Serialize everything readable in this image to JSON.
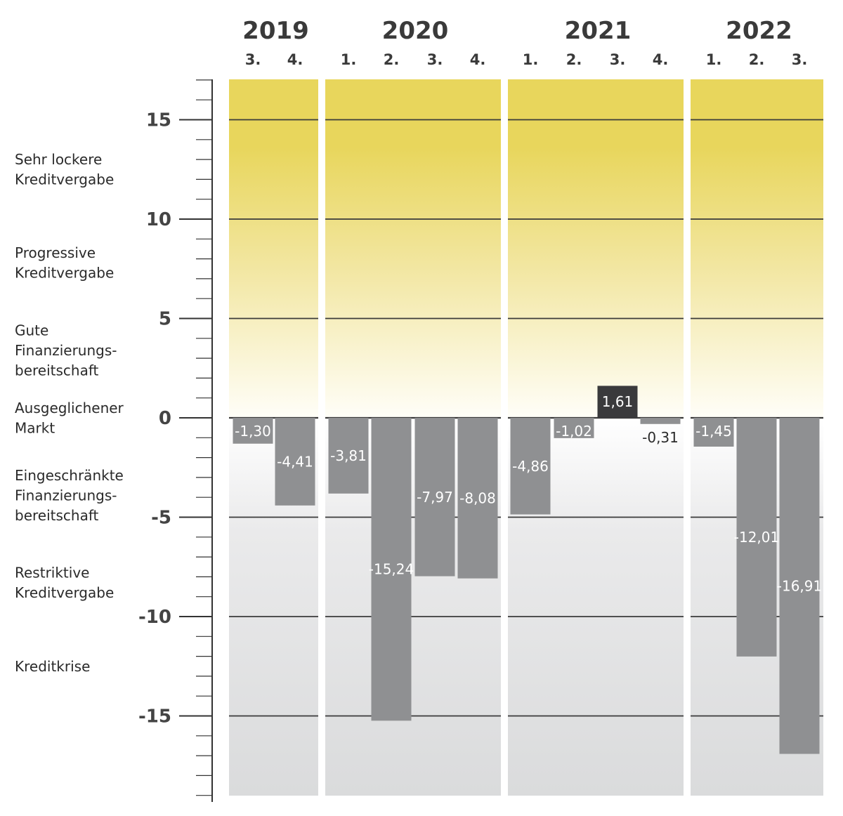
{
  "chart_data": {
    "type": "bar",
    "title": "",
    "xlabel": "",
    "ylabel": "",
    "ylim": [
      -19.2,
      16.8
    ],
    "y_ticks": [
      15,
      10,
      5,
      0,
      -5,
      -10,
      -15
    ],
    "y_tick_labels": [
      "15",
      "10",
      "5",
      "0",
      "-5",
      "-10",
      "-15"
    ],
    "grid": true,
    "groups": [
      {
        "year": "2019",
        "quarters": [
          "3.",
          "4."
        ]
      },
      {
        "year": "2020",
        "quarters": [
          "1.",
          "2.",
          "3.",
          "4."
        ]
      },
      {
        "year": "2021",
        "quarters": [
          "1.",
          "2.",
          "3.",
          "4."
        ]
      },
      {
        "year": "2022",
        "quarters": [
          "1.",
          "2.",
          "3."
        ]
      }
    ],
    "values": [
      -1.3,
      -4.41,
      -3.81,
      -15.24,
      -7.97,
      -8.08,
      -4.86,
      -1.02,
      1.61,
      -0.31,
      -1.45,
      -12.01,
      -16.91
    ],
    "value_labels": [
      "-1,30",
      "-4,41",
      "-3,81",
      "-15,24",
      "-7,97",
      "-8,08",
      "-4,86",
      "-1,02",
      "1,61",
      "-0,31",
      "-1,45",
      "-12,01",
      "-16,91"
    ],
    "band_labels": [
      {
        "lines": [
          "Sehr lockere",
          "Kreditvergabe"
        ],
        "y": 12.5
      },
      {
        "lines": [
          "Progressive",
          "Kreditvergabe"
        ],
        "y": 7.8
      },
      {
        "lines": [
          "Gute",
          "Finanzierungs-",
          "bereitschaft"
        ],
        "y": 3.4
      },
      {
        "lines": [
          "Ausgeglichener",
          "Markt"
        ],
        "y": 0
      },
      {
        "lines": [
          "Eingeschränkte",
          "Finanzierungs-",
          "bereitschaft"
        ],
        "y": -3.9
      },
      {
        "lines": [
          "Restriktive",
          "Kreditvergabe"
        ],
        "y": -8.3
      },
      {
        "lines": [
          "Kreditkrise"
        ],
        "y": -12.5
      }
    ],
    "colors": {
      "negative_bar": "#8f9092",
      "positive_bar": "#3a3a3c",
      "top_yellow": "#ead95a",
      "grey_zone": "#dbdcdd",
      "gridline": "#3a3a3a"
    }
  }
}
